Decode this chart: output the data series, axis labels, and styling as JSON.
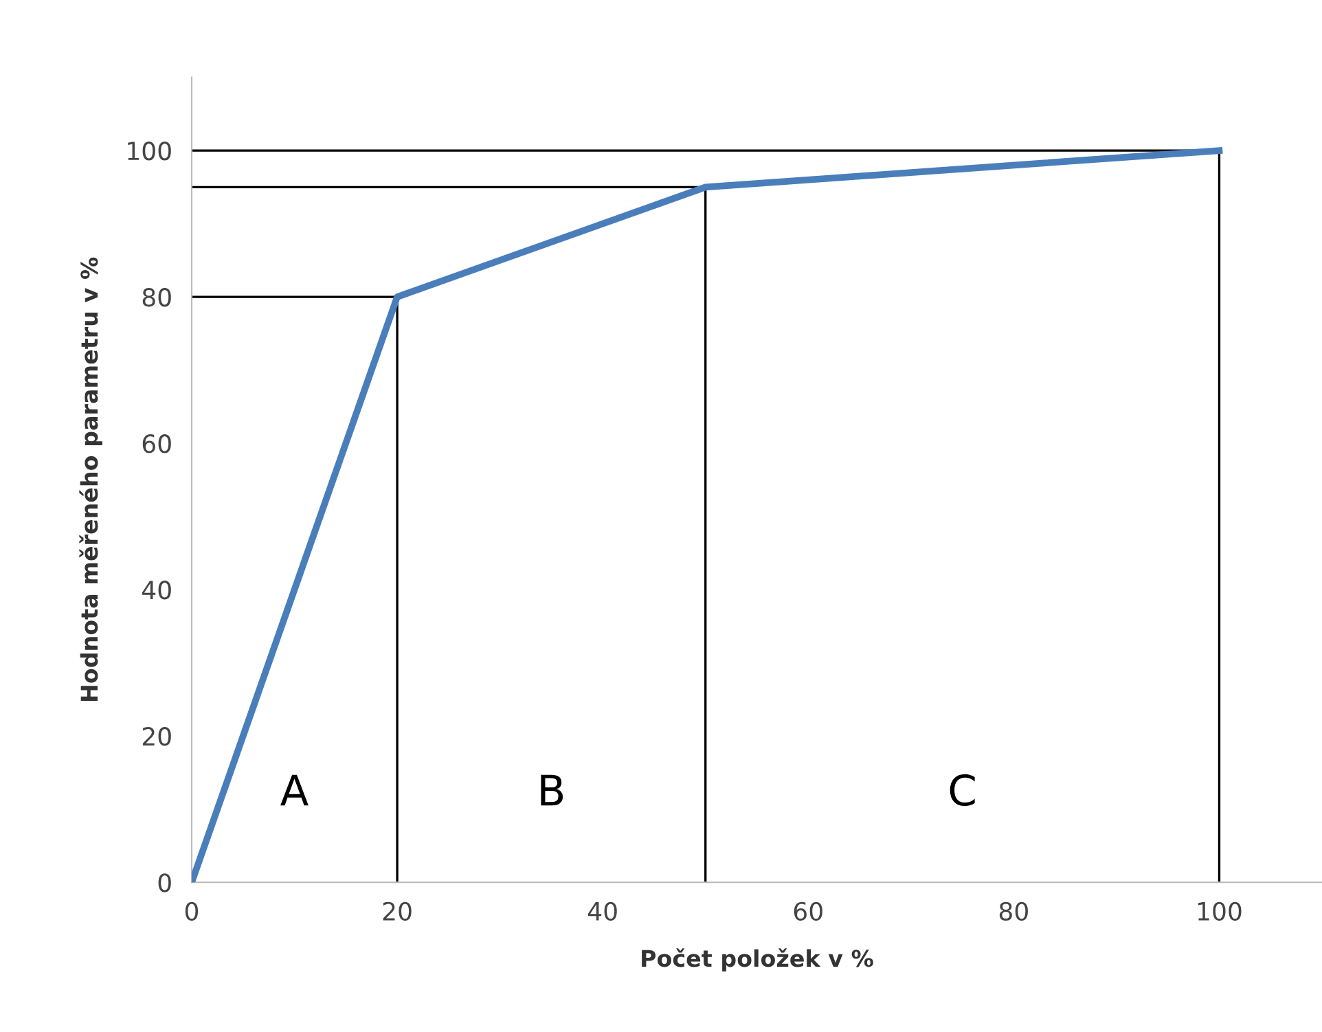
{
  "chart_data": {
    "type": "line",
    "xlabel": "Počet položek v %",
    "ylabel": "Hodnota měřeného parametru v %",
    "xlim": [
      0,
      110
    ],
    "ylim": [
      0,
      110
    ],
    "xticks": [
      0,
      20,
      40,
      60,
      80,
      100
    ],
    "yticks": [
      0,
      20,
      40,
      60,
      80,
      100
    ],
    "grid": false,
    "legend": false,
    "marker": "none",
    "line_style": "solid",
    "series": [
      {
        "color": "#4a7ebb",
        "x": [
          0,
          20,
          50,
          100
        ],
        "values": [
          0,
          80,
          95,
          100
        ]
      },
      {
        "color": "#000000",
        "x": [
          0,
          20,
          20
        ],
        "values": [
          80,
          80,
          0
        ]
      },
      {
        "color": "#000000",
        "x": [
          0,
          50,
          50
        ],
        "values": [
          95,
          95,
          0
        ]
      },
      {
        "color": "#000000",
        "x": [
          0,
          100,
          100
        ],
        "values": [
          100,
          100,
          0
        ]
      }
    ],
    "annotations": [
      "A",
      "B",
      "C"
    ]
  }
}
